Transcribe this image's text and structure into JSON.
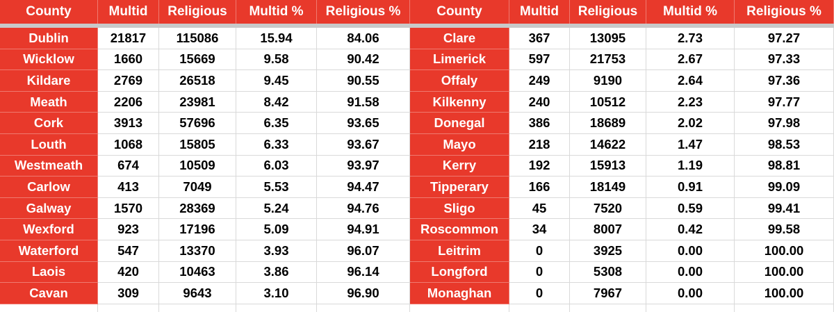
{
  "headers": [
    "County",
    "Multid",
    "Religious",
    "Multid %",
    "Religious %",
    "County",
    "Multid",
    "Religious",
    "Multid %",
    "Religious %"
  ],
  "left_rows": [
    {
      "county": "Dublin",
      "multid": "21817",
      "religious": "115086",
      "multid_pct": "15.94",
      "religious_pct": "84.06"
    },
    {
      "county": "Wicklow",
      "multid": "1660",
      "religious": "15669",
      "multid_pct": "9.58",
      "religious_pct": "90.42"
    },
    {
      "county": "Kildare",
      "multid": "2769",
      "religious": "26518",
      "multid_pct": "9.45",
      "religious_pct": "90.55"
    },
    {
      "county": "Meath",
      "multid": "2206",
      "religious": "23981",
      "multid_pct": "8.42",
      "religious_pct": "91.58"
    },
    {
      "county": "Cork",
      "multid": "3913",
      "religious": "57696",
      "multid_pct": "6.35",
      "religious_pct": "93.65"
    },
    {
      "county": "Louth",
      "multid": "1068",
      "religious": "15805",
      "multid_pct": "6.33",
      "religious_pct": "93.67"
    },
    {
      "county": "Westmeath",
      "multid": "674",
      "religious": "10509",
      "multid_pct": "6.03",
      "religious_pct": "93.97"
    },
    {
      "county": "Carlow",
      "multid": "413",
      "religious": "7049",
      "multid_pct": "5.53",
      "religious_pct": "94.47"
    },
    {
      "county": "Galway",
      "multid": "1570",
      "religious": "28369",
      "multid_pct": "5.24",
      "religious_pct": "94.76"
    },
    {
      "county": "Wexford",
      "multid": "923",
      "religious": "17196",
      "multid_pct": "5.09",
      "religious_pct": "94.91"
    },
    {
      "county": "Waterford",
      "multid": "547",
      "religious": "13370",
      "multid_pct": "3.93",
      "religious_pct": "96.07"
    },
    {
      "county": "Laois",
      "multid": "420",
      "religious": "10463",
      "multid_pct": "3.86",
      "religious_pct": "96.14"
    },
    {
      "county": "Cavan",
      "multid": "309",
      "religious": "9643",
      "multid_pct": "3.10",
      "religious_pct": "96.90"
    }
  ],
  "right_rows": [
    {
      "county": "Clare",
      "multid": "367",
      "religious": "13095",
      "multid_pct": "2.73",
      "religious_pct": "97.27"
    },
    {
      "county": "Limerick",
      "multid": "597",
      "religious": "21753",
      "multid_pct": "2.67",
      "religious_pct": "97.33"
    },
    {
      "county": "Offaly",
      "multid": "249",
      "religious": "9190",
      "multid_pct": "2.64",
      "religious_pct": "97.36"
    },
    {
      "county": "Kilkenny",
      "multid": "240",
      "religious": "10512",
      "multid_pct": "2.23",
      "religious_pct": "97.77"
    },
    {
      "county": "Donegal",
      "multid": "386",
      "religious": "18689",
      "multid_pct": "2.02",
      "religious_pct": "97.98"
    },
    {
      "county": "Mayo",
      "multid": "218",
      "religious": "14622",
      "multid_pct": "1.47",
      "religious_pct": "98.53"
    },
    {
      "county": "Kerry",
      "multid": "192",
      "religious": "15913",
      "multid_pct": "1.19",
      "religious_pct": "98.81"
    },
    {
      "county": "Tipperary",
      "multid": "166",
      "religious": "18149",
      "multid_pct": "0.91",
      "religious_pct": "99.09"
    },
    {
      "county": "Sligo",
      "multid": "45",
      "religious": "7520",
      "multid_pct": "0.59",
      "religious_pct": "99.41"
    },
    {
      "county": "Roscommon",
      "multid": "34",
      "religious": "8007",
      "multid_pct": "0.42",
      "religious_pct": "99.58"
    },
    {
      "county": "Leitrim",
      "multid": "0",
      "religious": "3925",
      "multid_pct": "0.00",
      "religious_pct": "100.00"
    },
    {
      "county": "Longford",
      "multid": "0",
      "religious": "5308",
      "multid_pct": "0.00",
      "religious_pct": "100.00"
    },
    {
      "county": "Monaghan",
      "multid": "0",
      "religious": "7967",
      "multid_pct": "0.00",
      "religious_pct": "100.00"
    }
  ],
  "colors": {
    "accent": "#e8392b",
    "header_text": "#ffffff",
    "grid": "#d9d9d9",
    "separator": "#c9c9c9"
  }
}
